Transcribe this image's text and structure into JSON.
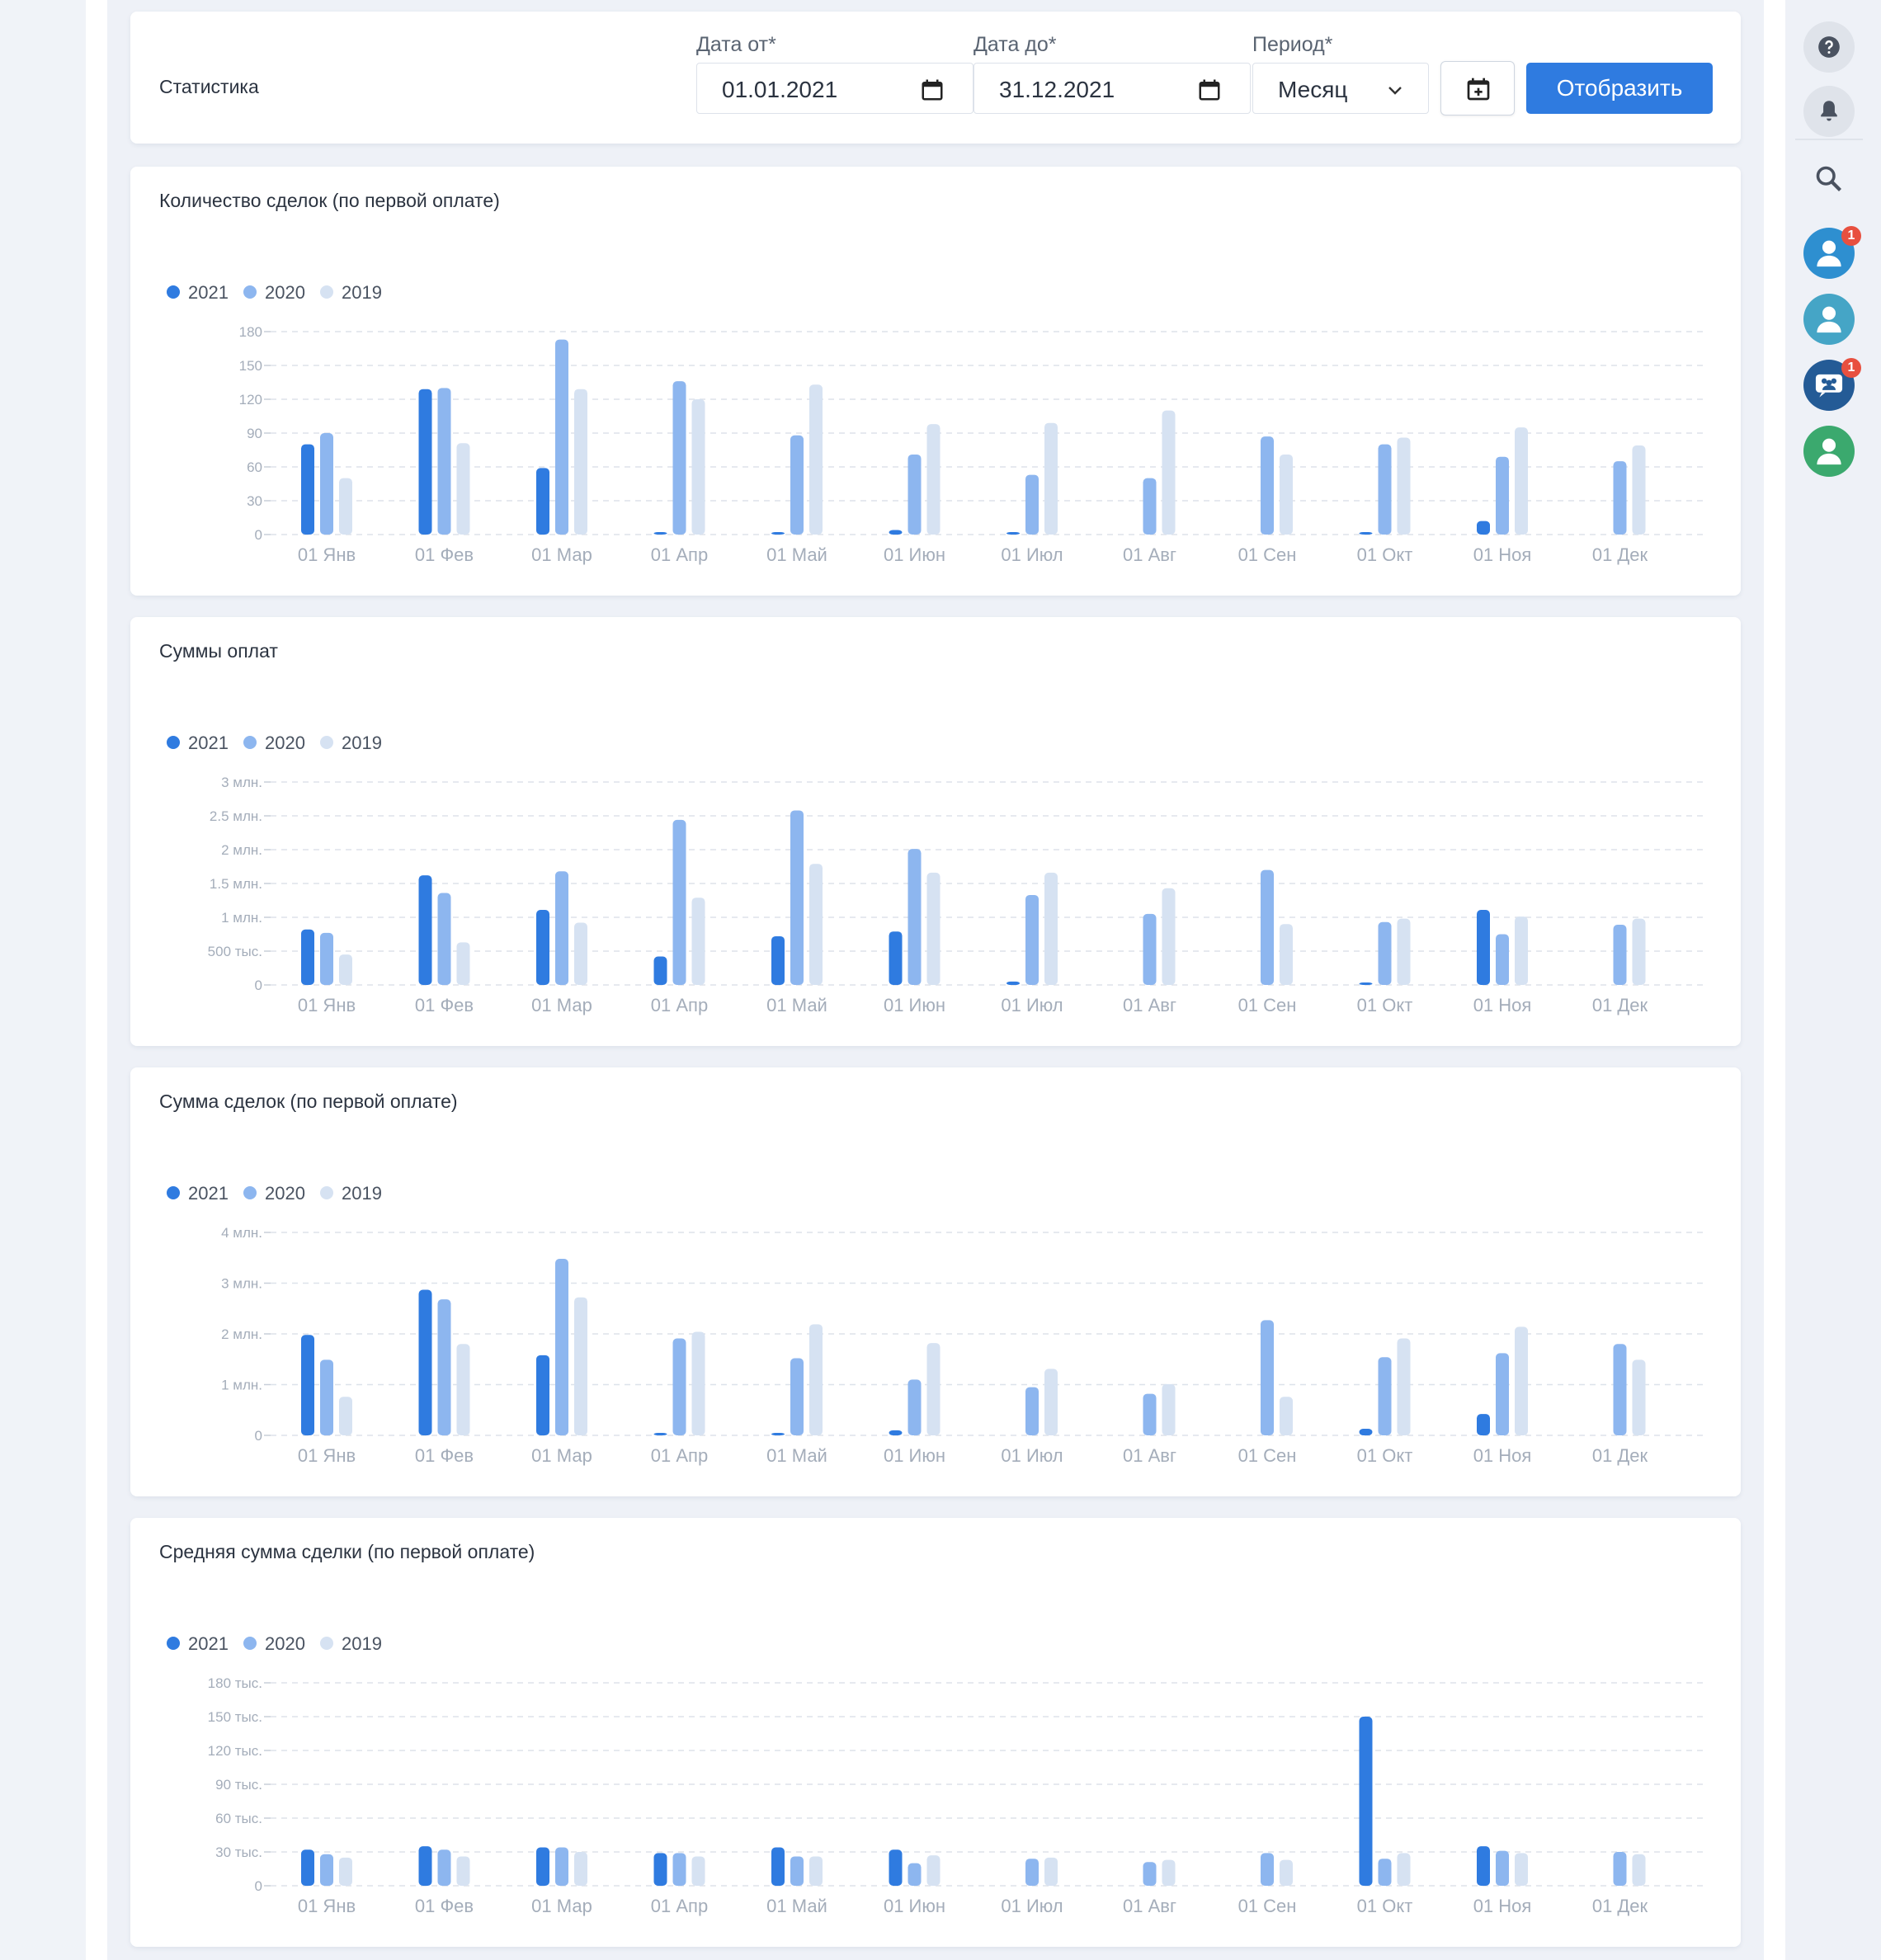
{
  "header": {
    "title": "Статистика",
    "date_from_label": "Дата от*",
    "date_from_value": "01.01.2021",
    "date_to_label": "Дата до*",
    "date_to_value": "31.12.2021",
    "period_label": "Период*",
    "period_value": "Месяц",
    "display_button": "Отобразить"
  },
  "sidebar": {
    "help_icon": "question-icon",
    "bell_icon": "bell-icon",
    "search_icon": "search-icon",
    "user1_badge": "1",
    "chat_badge": "1"
  },
  "colors": {
    "series_2021": "#2f7be0",
    "series_2020": "#8db6ef",
    "series_2019": "#d6e2f2",
    "accent": "#2f7be0",
    "badge": "#e8503f"
  },
  "chart_data": [
    {
      "type": "bar",
      "title": "Количество сделок (по первой оплате)",
      "categories": [
        "01 Янв",
        "01 Фев",
        "01 Мар",
        "01 Апр",
        "01 Май",
        "01 Июн",
        "01 Июл",
        "01 Авг",
        "01 Сен",
        "01 Окт",
        "01 Ноя",
        "01 Дек"
      ],
      "ylim": [
        0,
        180
      ],
      "yticks": [
        0,
        30,
        60,
        90,
        120,
        150,
        180
      ],
      "ytick_labels": [
        "0",
        "30",
        "60",
        "90",
        "120",
        "150",
        "180"
      ],
      "legend": [
        "2021",
        "2020",
        "2019"
      ],
      "legend_position": "top-left",
      "grid": true,
      "series": [
        {
          "name": "2021",
          "values": [
            80,
            129,
            59,
            2,
            1,
            4,
            1,
            0,
            0,
            1,
            12,
            0
          ]
        },
        {
          "name": "2020",
          "values": [
            90,
            130,
            173,
            136,
            88,
            71,
            53,
            50,
            87,
            80,
            69,
            65
          ]
        },
        {
          "name": "2019",
          "values": [
            50,
            81,
            129,
            120,
            133,
            98,
            99,
            110,
            71,
            86,
            95,
            79
          ]
        }
      ]
    },
    {
      "type": "bar",
      "title": "Суммы оплат",
      "categories": [
        "01 Янв",
        "01 Фев",
        "01 Мар",
        "01 Апр",
        "01 Май",
        "01 Июн",
        "01 Июл",
        "01 Авг",
        "01 Сен",
        "01 Окт",
        "01 Ноя",
        "01 Дек"
      ],
      "ylim": [
        0,
        3000000
      ],
      "yticks": [
        0,
        500000,
        1000000,
        1500000,
        2000000,
        2500000,
        3000000
      ],
      "ytick_labels": [
        "0",
        "500 тыс.",
        "1 млн.",
        "1.5 млн.",
        "2 млн.",
        "2.5 млн.",
        "3 млн."
      ],
      "legend": [
        "2021",
        "2020",
        "2019"
      ],
      "legend_position": "top-left",
      "grid": true,
      "series": [
        {
          "name": "2021",
          "values": [
            820000,
            1620000,
            1110000,
            420000,
            720000,
            790000,
            50000,
            0,
            0,
            30000,
            1110000,
            0
          ]
        },
        {
          "name": "2020",
          "values": [
            770000,
            1360000,
            1680000,
            2440000,
            2580000,
            2010000,
            1330000,
            1050000,
            1700000,
            930000,
            750000,
            890000
          ]
        },
        {
          "name": "2019",
          "values": [
            450000,
            630000,
            920000,
            1290000,
            1790000,
            1660000,
            1660000,
            1430000,
            900000,
            980000,
            1010000,
            980000
          ]
        }
      ]
    },
    {
      "type": "bar",
      "title": "Сумма сделок (по первой оплате)",
      "categories": [
        "01 Янв",
        "01 Фев",
        "01 Мар",
        "01 Апр",
        "01 Май",
        "01 Июн",
        "01 Июл",
        "01 Авг",
        "01 Сен",
        "01 Окт",
        "01 Ноя",
        "01 Дек"
      ],
      "ylim": [
        0,
        4000000
      ],
      "yticks": [
        0,
        1000000,
        2000000,
        3000000,
        4000000
      ],
      "ytick_labels": [
        "0",
        "1 млн.",
        "2 млн.",
        "3 млн.",
        "4 млн."
      ],
      "legend": [
        "2021",
        "2020",
        "2019"
      ],
      "legend_position": "top-left",
      "grid": true,
      "series": [
        {
          "name": "2021",
          "values": [
            1980000,
            2870000,
            1580000,
            40000,
            40000,
            100000,
            0,
            0,
            0,
            130000,
            420000,
            0
          ]
        },
        {
          "name": "2020",
          "values": [
            1490000,
            2680000,
            3480000,
            1910000,
            1520000,
            1100000,
            950000,
            820000,
            2270000,
            1540000,
            1620000,
            1800000
          ]
        },
        {
          "name": "2019",
          "values": [
            760000,
            1800000,
            2720000,
            2040000,
            2190000,
            1820000,
            1310000,
            1010000,
            760000,
            1910000,
            2140000,
            1490000
          ]
        }
      ]
    },
    {
      "type": "bar",
      "title": "Средняя сумма сделки (по первой оплате)",
      "categories": [
        "01 Янв",
        "01 Фев",
        "01 Мар",
        "01 Апр",
        "01 Май",
        "01 Июн",
        "01 Июл",
        "01 Авг",
        "01 Сен",
        "01 Окт",
        "01 Ноя",
        "01 Дек"
      ],
      "ylim": [
        0,
        180000
      ],
      "yticks": [
        0,
        30000,
        60000,
        90000,
        120000,
        150000,
        180000
      ],
      "ytick_labels": [
        "0",
        "30 тыс.",
        "60 тыс.",
        "90 тыс.",
        "120 тыс.",
        "150 тыс.",
        "180 тыс."
      ],
      "legend": [
        "2021",
        "2020",
        "2019"
      ],
      "legend_position": "top-left",
      "grid": true,
      "series": [
        {
          "name": "2021",
          "values": [
            32000,
            35000,
            34000,
            29000,
            34000,
            32000,
            0,
            0,
            0,
            150000,
            35000,
            0
          ]
        },
        {
          "name": "2020",
          "values": [
            28000,
            32000,
            34000,
            29000,
            26000,
            20000,
            24000,
            21000,
            29000,
            24000,
            31000,
            30000
          ]
        },
        {
          "name": "2019",
          "values": [
            25000,
            26000,
            30000,
            26000,
            26000,
            27000,
            25000,
            23000,
            23000,
            29000,
            29000,
            28000
          ]
        }
      ]
    }
  ]
}
